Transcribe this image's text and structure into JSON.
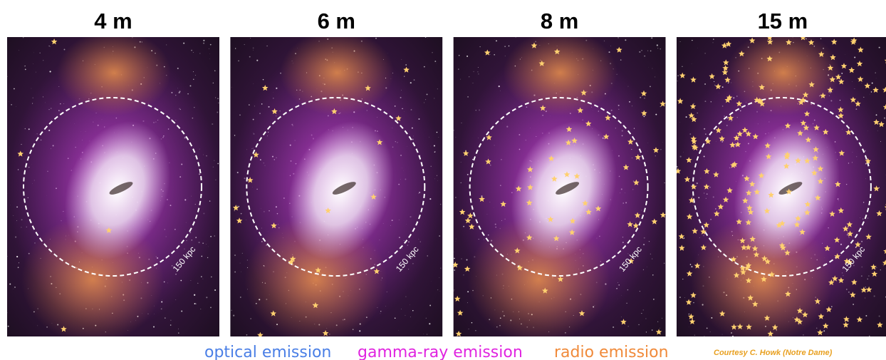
{
  "panels": [
    {
      "title": "4 m",
      "scale_label": "150 kpc"
    },
    {
      "title": "6 m",
      "scale_label": "150 kpc"
    },
    {
      "title": "8 m",
      "scale_label": "150 kpc"
    },
    {
      "title": "15 m",
      "scale_label": "150 kpc"
    }
  ],
  "legend": [
    {
      "label": "optical emission",
      "color": "#4a7fe6"
    },
    {
      "label": "gamma-ray emission",
      "color": "#e024e0"
    },
    {
      "label": "radio emission",
      "color": "#f08a3a"
    }
  ],
  "credit": "Courtesy C. Howk (Notre Dame)"
}
